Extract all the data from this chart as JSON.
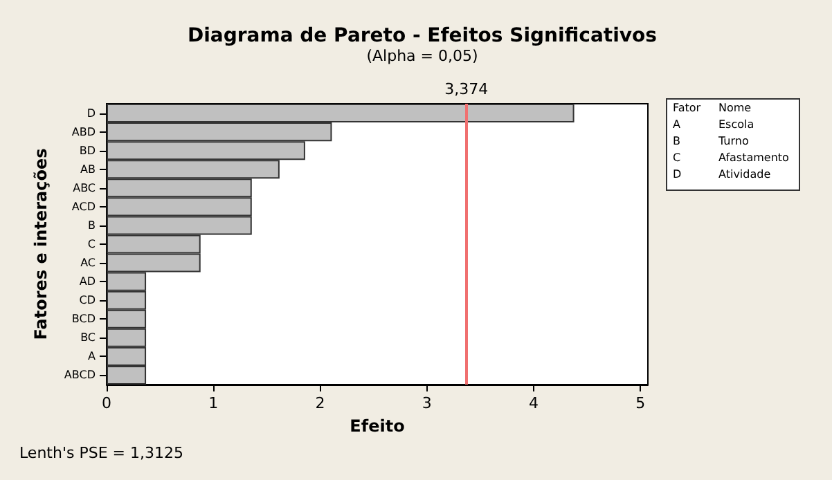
{
  "chart_data": {
    "type": "bar",
    "orientation": "horizontal",
    "title": "Diagrama de Pareto - Efeitos Significativos",
    "subtitle": "(Alpha = 0,05)",
    "xlabel": "Efeito",
    "ylabel": "Fatores e interações",
    "categories": [
      "D",
      "ABD",
      "BD",
      "AB",
      "ABC",
      "ACD",
      "B",
      "C",
      "AC",
      "AD",
      "CD",
      "BCD",
      "BC",
      "A",
      "ABCD"
    ],
    "values": [
      4.38,
      2.11,
      1.86,
      1.62,
      1.36,
      1.36,
      1.36,
      0.88,
      0.88,
      0.37,
      0.37,
      0.37,
      0.37,
      0.37,
      0.37
    ],
    "color": "#c0c0c0",
    "xlim": [
      0,
      5.07
    ],
    "xticks": [
      0,
      1,
      2,
      3,
      4,
      5
    ],
    "ref_lines": [
      {
        "axis": "x",
        "value": 3.374,
        "label": "3,374",
        "color": "#f07070"
      }
    ],
    "annotations": [
      "Lenth's PSE = 1,3125",
      "Fator",
      "Nome",
      "A",
      "Escola",
      "B",
      "Turno",
      "C",
      "Afastamento",
      "D",
      "Atividade"
    ]
  }
}
